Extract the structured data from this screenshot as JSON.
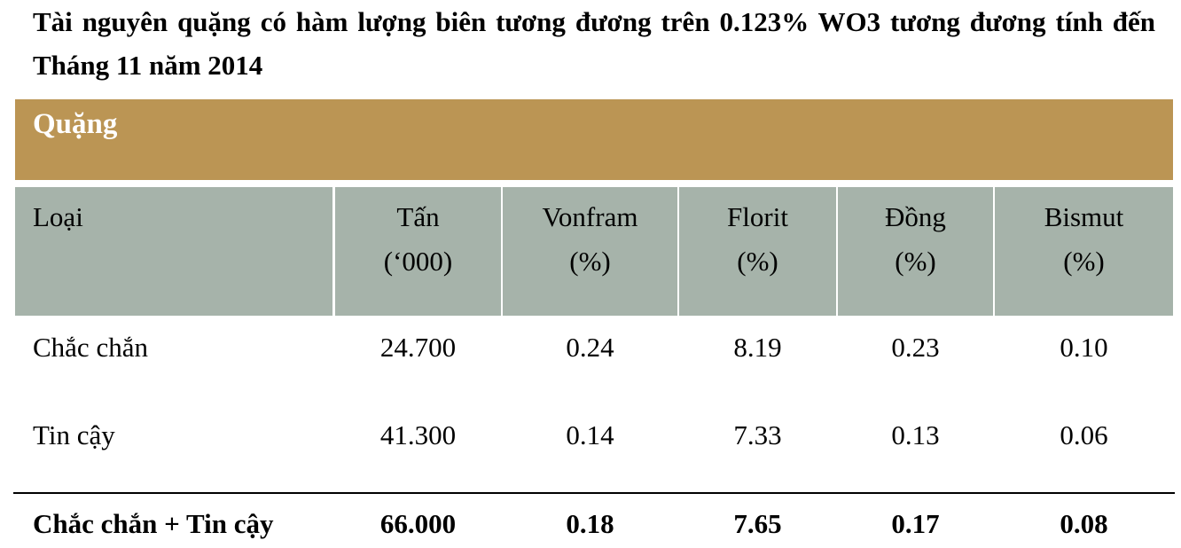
{
  "title": "Tài nguyên quặng có hàm lượng biên tương đương trên 0.123% WO3 tương đương tính đến Tháng 11 năm 2014",
  "section": {
    "label": "Quặng"
  },
  "table": {
    "headers": [
      {
        "line1": "Loại",
        "line2": ""
      },
      {
        "line1": "Tấn",
        "line2": "(‘000)"
      },
      {
        "line1": "Vonfram",
        "line2": "(%)"
      },
      {
        "line1": "Florit",
        "line2": "(%)"
      },
      {
        "line1": "Đồng",
        "line2": "(%)"
      },
      {
        "line1": "Bismut",
        "line2": "(%)"
      }
    ],
    "rows": [
      {
        "type": "Chắc chắn",
        "tonnes": "24.700",
        "tungsten": "0.24",
        "fluorite": "8.19",
        "copper": "0.23",
        "bismuth": "0.10"
      },
      {
        "type": "Tin cậy",
        "tonnes": "41.300",
        "tungsten": "0.14",
        "fluorite": "7.33",
        "copper": "0.13",
        "bismuth": "0.06"
      }
    ],
    "total": {
      "type": "Chắc chắn + Tin cậy",
      "tonnes": "66.000",
      "tungsten": "0.18",
      "fluorite": "7.65",
      "copper": "0.17",
      "bismuth": "0.08"
    }
  },
  "colors": {
    "section_band": "#bb9554",
    "header_band": "#a6b3aa"
  }
}
